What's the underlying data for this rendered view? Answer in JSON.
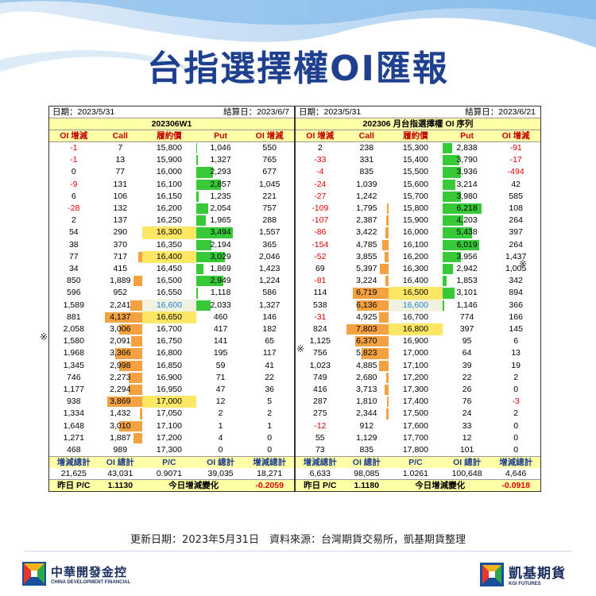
{
  "title": "台指選擇權OI匯報",
  "left": {
    "date": "日期：2023/5/31",
    "settle": "結算日：2023/6/7",
    "series": "202306W1",
    "headers": [
      "OI 增減",
      "Call",
      "履約價",
      "Put",
      "OI 增減"
    ],
    "rows": [
      {
        "c_chg": "-1",
        "call": "7",
        "strike": "15,800",
        "put": "1,046",
        "p_chg": "550",
        "cb": 0,
        "pb": 2
      },
      {
        "c_chg": "-1",
        "call": "13",
        "strike": "15,900",
        "put": "1,327",
        "p_chg": "765",
        "cb": 0,
        "pb": 4
      },
      {
        "c_chg": "0",
        "call": "77",
        "strike": "16,000",
        "put": "2,293",
        "p_chg": "677",
        "cb": 0,
        "pb": 35
      },
      {
        "c_chg": "-9",
        "call": "131",
        "strike": "16,100",
        "put": "2,857",
        "p_chg": "1,045",
        "cb": 0,
        "pb": 50
      },
      {
        "c_chg": "6",
        "call": "106",
        "strike": "16,150",
        "put": "1,235",
        "p_chg": "221",
        "cb": 0,
        "pb": 6
      },
      {
        "c_chg": "-28",
        "call": "132",
        "strike": "16,200",
        "put": "2,054",
        "p_chg": "757",
        "cb": 0,
        "pb": 25
      },
      {
        "c_chg": "2",
        "call": "137",
        "strike": "16,250",
        "put": "1,965",
        "p_chg": "288",
        "cb": 0,
        "pb": 20
      },
      {
        "c_chg": "54",
        "call": "290",
        "strike": "16,300",
        "put": "3,494",
        "p_chg": "1,557",
        "cb": 0,
        "pb": 75
      },
      {
        "c_chg": "38",
        "call": "370",
        "strike": "16,350",
        "put": "2,194",
        "p_chg": "365",
        "cb": 0,
        "pb": 32
      },
      {
        "c_chg": "77",
        "call": "717",
        "strike": "16,400",
        "put": "3,029",
        "p_chg": "2,046",
        "cb": 10,
        "pb": 58
      },
      {
        "c_chg": "34",
        "call": "415",
        "strike": "16,450",
        "put": "1,869",
        "p_chg": "1,423",
        "cb": 0,
        "pb": 15
      },
      {
        "c_chg": "850",
        "call": "1,889",
        "strike": "16,500",
        "put": "2,949",
        "p_chg": "1,224",
        "cb": 20,
        "pb": 55
      },
      {
        "c_chg": "596",
        "call": "952",
        "strike": "16,550",
        "put": "1,118",
        "p_chg": "586",
        "cb": 0,
        "pb": 4
      },
      {
        "c_chg": "1,589",
        "call": "2,241",
        "strike": "16,600",
        "put": "2,033",
        "p_chg": "1,327",
        "cb": 28,
        "pb": 30
      },
      {
        "c_chg": "881",
        "call": "4,137",
        "strike": "16,650",
        "put": "460",
        "p_chg": "146",
        "cb": 85,
        "pb": 0
      },
      {
        "c_chg": "2,058",
        "call": "3,006",
        "strike": "16,700",
        "put": "417",
        "p_chg": "182",
        "cb": 52,
        "pb": 0
      },
      {
        "c_chg": "1,580",
        "call": "2,091",
        "strike": "16,750",
        "put": "141",
        "p_chg": "65",
        "cb": 25,
        "pb": 0
      },
      {
        "c_chg": "1,968",
        "call": "3,366",
        "strike": "16,800",
        "put": "195",
        "p_chg": "117",
        "cb": 62,
        "pb": 0
      },
      {
        "c_chg": "1,345",
        "call": "2,998",
        "strike": "16,850",
        "put": "59",
        "p_chg": "41",
        "cb": 52,
        "pb": 0
      },
      {
        "c_chg": "746",
        "call": "2,273",
        "strike": "16,900",
        "put": "71",
        "p_chg": "22",
        "cb": 30,
        "pb": 0
      },
      {
        "c_chg": "1,177",
        "call": "2,294",
        "strike": "16,950",
        "put": "47",
        "p_chg": "36",
        "cb": 30,
        "pb": 0
      },
      {
        "c_chg": "938",
        "call": "3,869",
        "strike": "17,000",
        "put": "12",
        "p_chg": "5",
        "cb": 80,
        "pb": 0
      },
      {
        "c_chg": "1,334",
        "call": "1,432",
        "strike": "17,050",
        "put": "2",
        "p_chg": "2",
        "cb": 6,
        "pb": 0
      },
      {
        "c_chg": "1,648",
        "call": "3,010",
        "strike": "17,100",
        "put": "1",
        "p_chg": "1",
        "cb": 52,
        "pb": 0
      },
      {
        "c_chg": "1,271",
        "call": "1,887",
        "strike": "17,200",
        "put": "4",
        "p_chg": "0",
        "cb": 20,
        "pb": 0
      },
      {
        "c_chg": "468",
        "call": "989",
        "strike": "17,300",
        "put": "0",
        "p_chg": "0",
        "cb": 0,
        "pb": 0
      }
    ],
    "foot_headers": [
      "增減總計",
      "OI 總計",
      "P/C",
      "OI 總計",
      "增減總計"
    ],
    "foot_values": [
      "21,625",
      "43,031",
      "0.9071",
      "39,035",
      "18,271"
    ],
    "prev_pc_label": "昨日 P/C",
    "prev_pc": "1.1130",
    "today_change_label": "今日增減變化",
    "today_change": "-0.2059"
  },
  "right": {
    "date": "日期：2023/5/31",
    "settle": "結算日：2023/6/21",
    "series": "202306 月台指選擇權 OI 序列",
    "headers": [
      "OI 增減",
      "Call",
      "履約價",
      "Put",
      "OI 增減"
    ],
    "rows": [
      {
        "c_chg": "2",
        "call": "238",
        "strike": "15,300",
        "put": "2,838",
        "p_chg": "-91",
        "cb": 0,
        "pb": 20
      },
      {
        "c_chg": "-33",
        "call": "331",
        "strike": "15,400",
        "put": "3,790",
        "p_chg": "-17",
        "cb": 0,
        "pb": 35
      },
      {
        "c_chg": "-4",
        "call": "835",
        "strike": "15,500",
        "put": "3,936",
        "p_chg": "-494",
        "cb": 0,
        "pb": 38
      },
      {
        "c_chg": "-24",
        "call": "1,039",
        "strike": "15,600",
        "put": "3,214",
        "p_chg": "42",
        "cb": 0,
        "pb": 26
      },
      {
        "c_chg": "-27",
        "call": "1,242",
        "strike": "15,700",
        "put": "3,980",
        "p_chg": "585",
        "cb": 0,
        "pb": 38
      },
      {
        "c_chg": "-109",
        "call": "1,795",
        "strike": "15,800",
        "put": "6,218",
        "p_chg": "108",
        "cb": 4,
        "pb": 80
      },
      {
        "c_chg": "-107",
        "call": "2,387",
        "strike": "15,900",
        "put": "4,203",
        "p_chg": "264",
        "cb": 5,
        "pb": 42
      },
      {
        "c_chg": "-86",
        "call": "3,422",
        "strike": "16,000",
        "put": "5,438",
        "p_chg": "397",
        "cb": 8,
        "pb": 60
      },
      {
        "c_chg": "-154",
        "call": "4,785",
        "strike": "16,100",
        "put": "6,019",
        "p_chg": "264",
        "cb": 15,
        "pb": 75
      },
      {
        "c_chg": "-52",
        "call": "3,855",
        "strike": "16,200",
        "put": "3,956",
        "p_chg": "1,437",
        "cb": 10,
        "pb": 38
      },
      {
        "c_chg": "69",
        "call": "5,397",
        "strike": "16,300",
        "put": "2,942",
        "p_chg": "1,005",
        "cb": 20,
        "pb": 22
      },
      {
        "c_chg": "-81",
        "call": "3,224",
        "strike": "16,400",
        "put": "1,853",
        "p_chg": "342",
        "cb": 8,
        "pb": 8
      },
      {
        "c_chg": "114",
        "call": "6,719",
        "strike": "16,500",
        "put": "3,101",
        "p_chg": "894",
        "cb": 82,
        "pb": 24
      },
      {
        "c_chg": "538",
        "call": "6,136",
        "strike": "16,600",
        "put": "1,146",
        "p_chg": "366",
        "cb": 72,
        "pb": 4
      },
      {
        "c_chg": "-31",
        "call": "4,925",
        "strike": "16,700",
        "put": "774",
        "p_chg": "166",
        "cb": 22,
        "pb": 0
      },
      {
        "c_chg": "824",
        "call": "7,803",
        "strike": "16,800",
        "put": "397",
        "p_chg": "145",
        "cb": 95,
        "pb": 0
      },
      {
        "c_chg": "1,125",
        "call": "6,370",
        "strike": "16,900",
        "put": "95",
        "p_chg": "6",
        "cb": 75,
        "pb": 0
      },
      {
        "c_chg": "756",
        "call": "5,823",
        "strike": "17,000",
        "put": "64",
        "p_chg": "13",
        "cb": 62,
        "pb": 0
      },
      {
        "c_chg": "1,023",
        "call": "4,885",
        "strike": "17,100",
        "put": "39",
        "p_chg": "19",
        "cb": 22,
        "pb": 0
      },
      {
        "c_chg": "749",
        "call": "2,680",
        "strike": "17,200",
        "put": "22",
        "p_chg": "2",
        "cb": 6,
        "pb": 0
      },
      {
        "c_chg": "416",
        "call": "3,713",
        "strike": "17,300",
        "put": "26",
        "p_chg": "0",
        "cb": 10,
        "pb": 0
      },
      {
        "c_chg": "287",
        "call": "1,810",
        "strike": "17,400",
        "put": "76",
        "p_chg": "-3",
        "cb": 4,
        "pb": 0
      },
      {
        "c_chg": "275",
        "call": "2,344",
        "strike": "17,500",
        "put": "24",
        "p_chg": "2",
        "cb": 5,
        "pb": 0
      },
      {
        "c_chg": "-12",
        "call": "912",
        "strike": "17,600",
        "put": "33",
        "p_chg": "0",
        "cb": 0,
        "pb": 0
      },
      {
        "c_chg": "55",
        "call": "1,129",
        "strike": "17,700",
        "put": "12",
        "p_chg": "0",
        "cb": 0,
        "pb": 0
      },
      {
        "c_chg": "73",
        "call": "835",
        "strike": "17,800",
        "put": "101",
        "p_chg": "0",
        "cb": 0,
        "pb": 0
      }
    ],
    "foot_headers": [
      "增減總計",
      "OI 總計",
      "P/C",
      "OI 總計",
      "增減總計"
    ],
    "foot_values": [
      "6,633",
      "98,085",
      "1.0261",
      "100,648",
      "4,646"
    ],
    "prev_pc_label": "昨日 P/C",
    "prev_pc": "1.1180",
    "today_change_label": "今日增減變化",
    "today_change": "-0.0918"
  },
  "marks": {
    "symbol": "※"
  },
  "update_line": "更新日期：2023年5月31日　資料來源：台灣期貨交易所，凱基期貨整理",
  "logos": {
    "cdf_cn": "中華開發金控",
    "cdf_en": "CHINA DEVELOPMENT FINANCIAL",
    "kgi_cn": "凱基期貨",
    "kgi_en": "KGI FUTURES"
  },
  "colors": {
    "call_bar": "#f4a142",
    "put_bar": "#38c938",
    "title": "#1f3f8f",
    "negative": "#e00000"
  }
}
